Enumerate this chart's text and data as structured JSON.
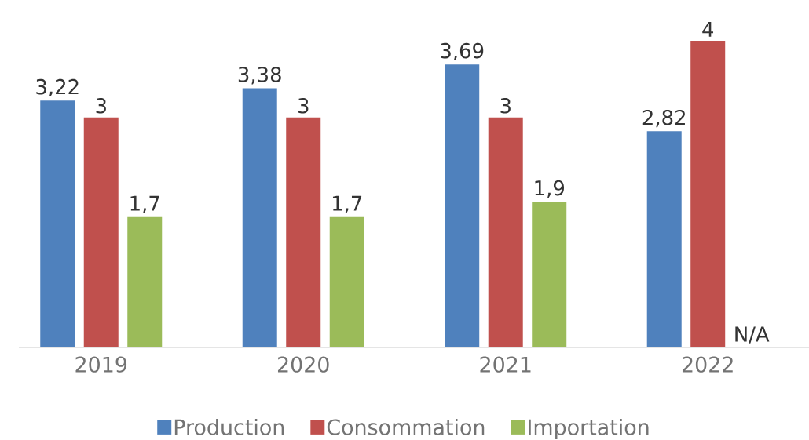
{
  "chart_data": {
    "type": "bar",
    "categories": [
      "2019",
      "2020",
      "2021",
      "2022"
    ],
    "legend": "bottom",
    "series": [
      {
        "name": "Production",
        "color": "#4f81bd",
        "values": [
          3.22,
          3.38,
          3.69,
          2.82
        ],
        "value_labels": [
          "3,22",
          "3,38",
          "3,69",
          "2,82"
        ]
      },
      {
        "name": "Consommation",
        "color": "#c0504d",
        "values": [
          3,
          3,
          3,
          4
        ],
        "value_labels": [
          "3",
          "3",
          "3",
          "4"
        ]
      },
      {
        "name": "Importation",
        "color": "#9bbb59",
        "values": [
          1.7,
          1.7,
          1.9,
          null
        ],
        "value_labels": [
          "1,7",
          "1,7",
          "1,9",
          "N/A"
        ]
      }
    ]
  }
}
